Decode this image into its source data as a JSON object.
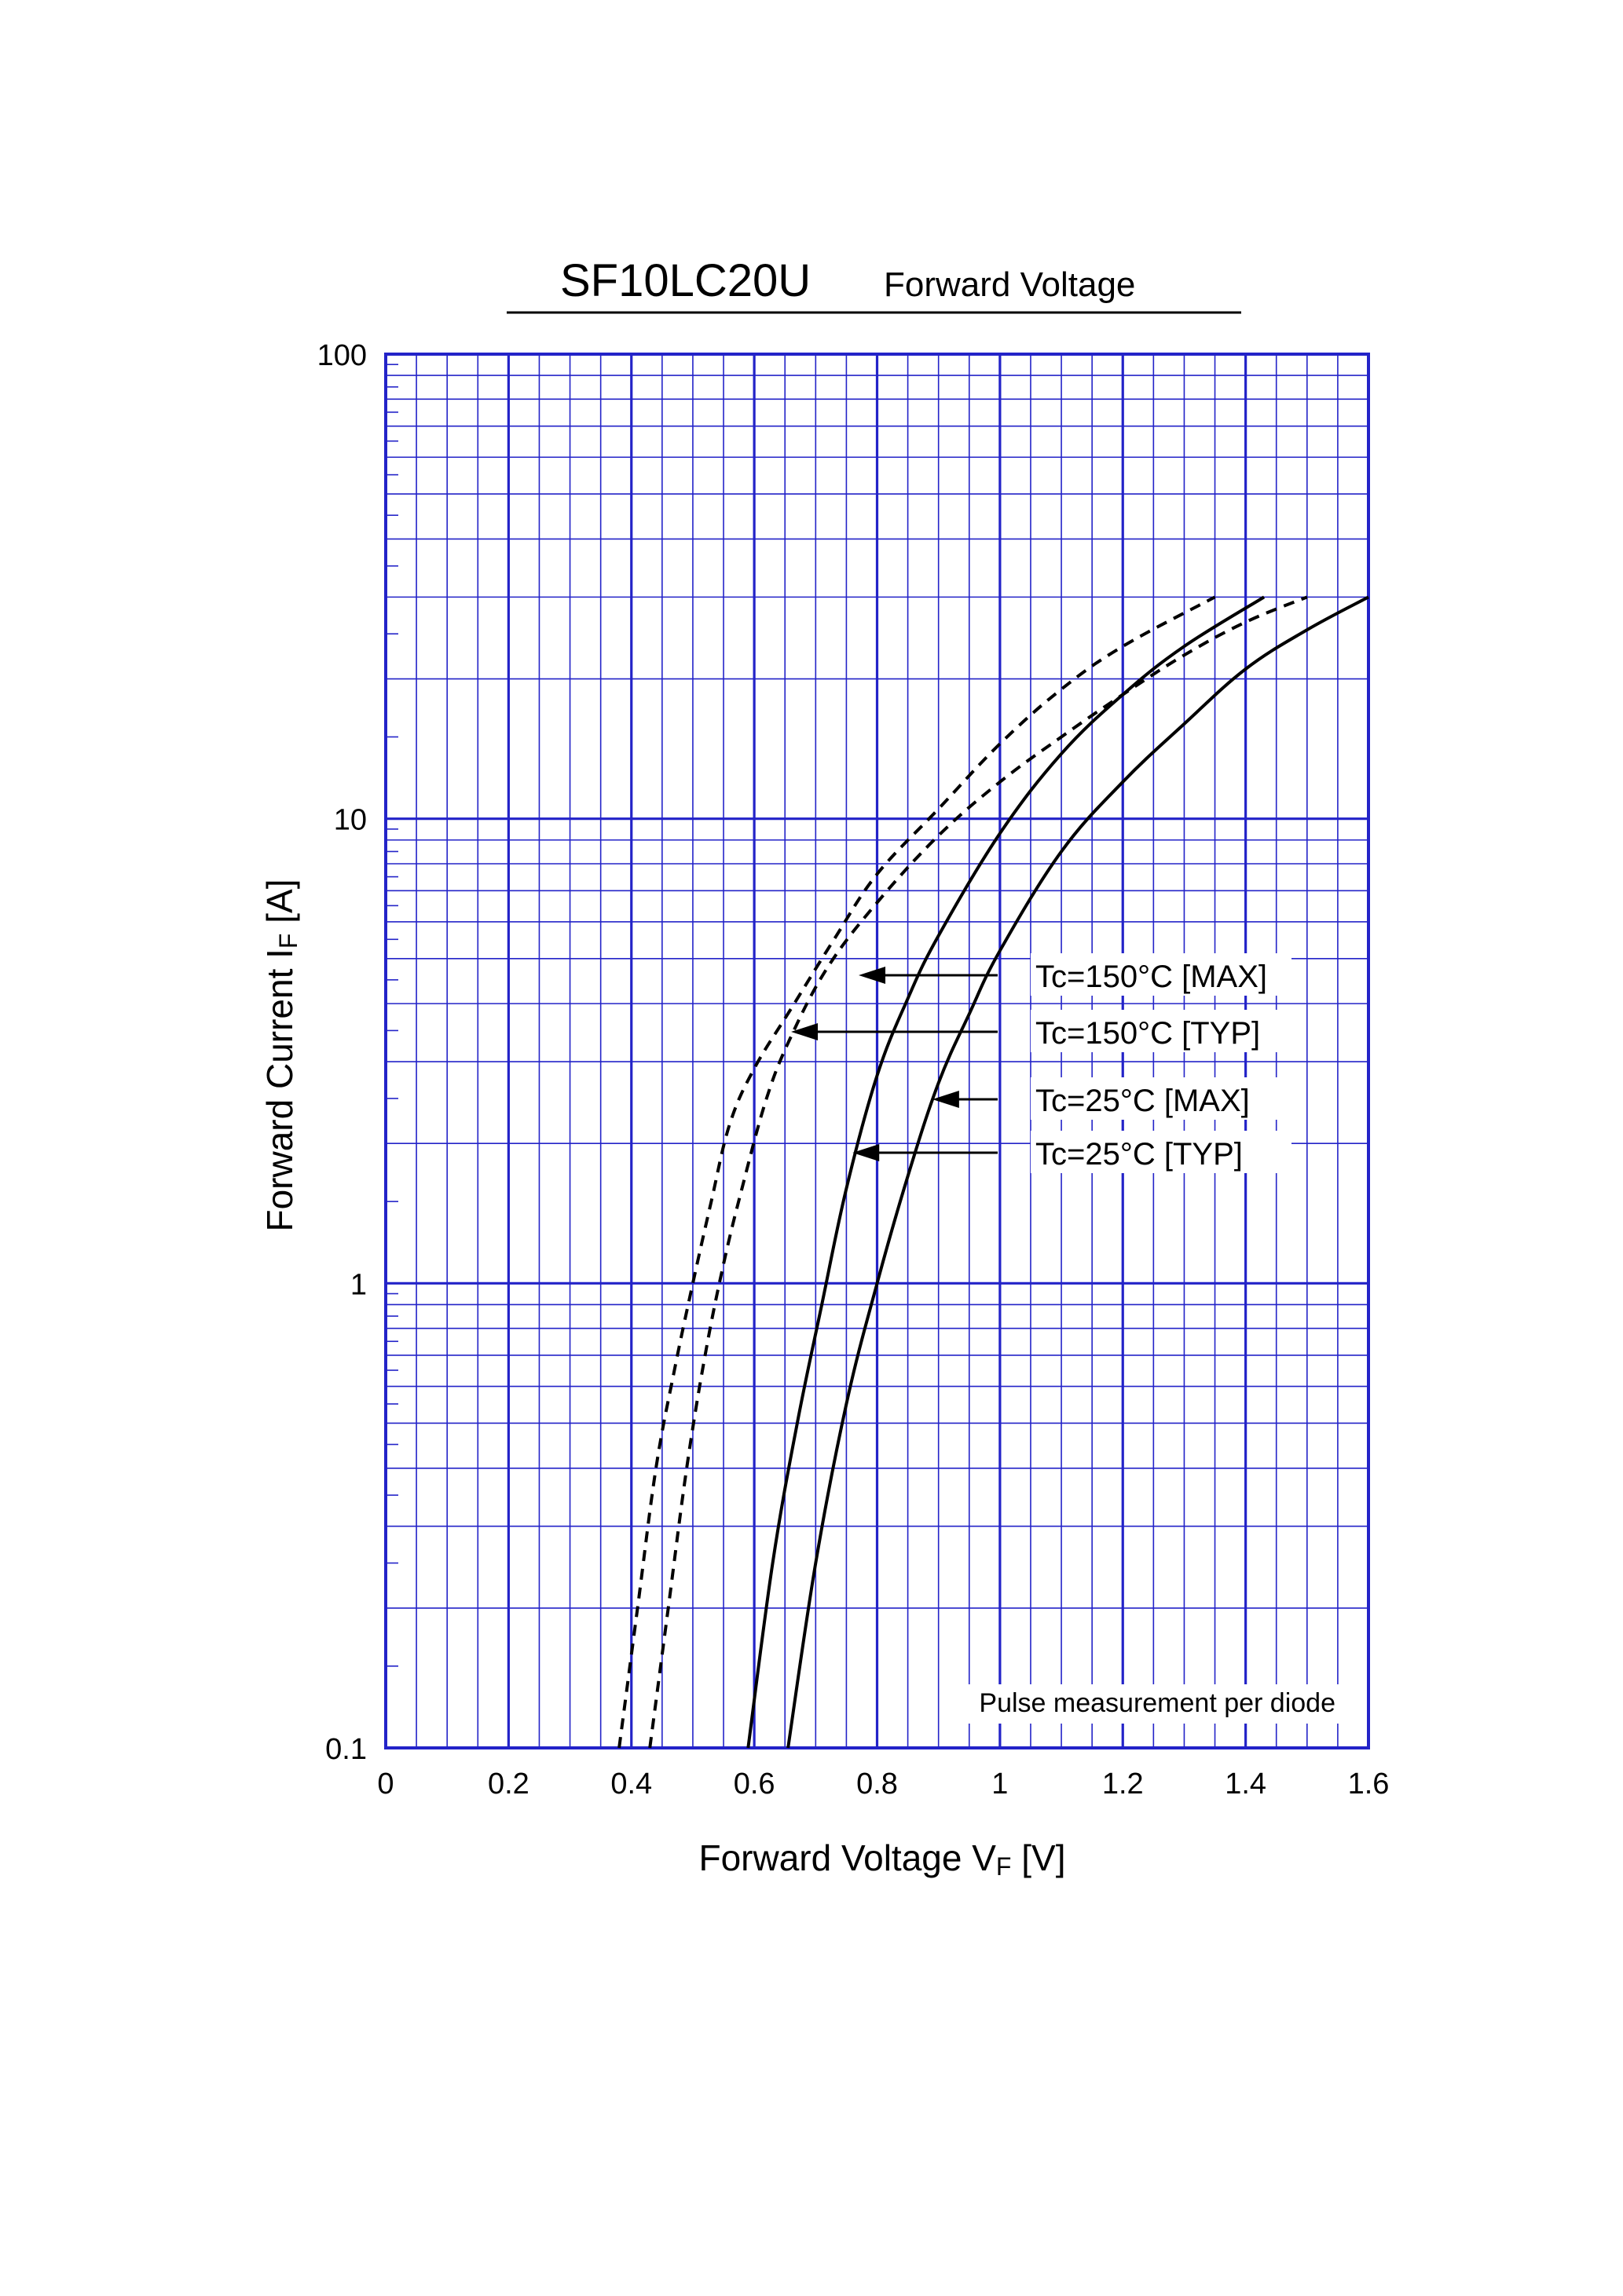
{
  "chart_data": {
    "type": "line",
    "title": "SF10LC20U",
    "subtitle": "Forward Voltage",
    "xlabel": {
      "main": "Forward Voltage  V",
      "sub": "F",
      "unit": "  [V]"
    },
    "ylabel": {
      "main": "Forward Current  I",
      "sub": "F",
      "unit": "  [A]"
    },
    "xlim": [
      0,
      1.6
    ],
    "ylim": [
      0.1,
      100
    ],
    "yscale": "log",
    "grid": true,
    "x_ticks": [
      {
        "v": 0,
        "label": "0"
      },
      {
        "v": 0.2,
        "label": "0.2"
      },
      {
        "v": 0.4,
        "label": "0.4"
      },
      {
        "v": 0.6,
        "label": "0.6"
      },
      {
        "v": 0.8,
        "label": "0.8"
      },
      {
        "v": 1.0,
        "label": "1"
      },
      {
        "v": 1.2,
        "label": "1.2"
      },
      {
        "v": 1.4,
        "label": "1.4"
      },
      {
        "v": 1.6,
        "label": "1.6"
      }
    ],
    "y_ticks": [
      {
        "v": 0.1,
        "label": "0.1"
      },
      {
        "v": 1,
        "label": "1"
      },
      {
        "v": 10,
        "label": "10"
      },
      {
        "v": 100,
        "label": "100"
      }
    ],
    "note": "Pulse measurement per diode",
    "series": [
      {
        "name": "Tc=150°C [MAX]",
        "style": "dashed",
        "label_point": [
          0.77,
          4.4
        ],
        "points": [
          [
            0.43,
            0.1
          ],
          [
            0.46,
            0.2
          ],
          [
            0.49,
            0.4
          ],
          [
            0.52,
            0.7
          ],
          [
            0.55,
            1.1
          ],
          [
            0.58,
            1.6
          ],
          [
            0.62,
            2.5
          ],
          [
            0.66,
            3.4
          ],
          [
            0.72,
            4.8
          ],
          [
            0.8,
            6.6
          ],
          [
            0.9,
            9.2
          ],
          [
            1.0,
            12
          ],
          [
            1.1,
            15
          ],
          [
            1.2,
            18.5
          ],
          [
            1.3,
            22.5
          ],
          [
            1.4,
            26.5
          ],
          [
            1.5,
            30
          ]
        ]
      },
      {
        "name": "Tc=150°C [TYP]",
        "style": "dashed",
        "label_point": [
          0.66,
          3.35
        ],
        "points": [
          [
            0.38,
            0.1
          ],
          [
            0.41,
            0.2
          ],
          [
            0.44,
            0.4
          ],
          [
            0.47,
            0.65
          ],
          [
            0.5,
            1.0
          ],
          [
            0.53,
            1.5
          ],
          [
            0.56,
            2.2
          ],
          [
            0.6,
            2.9
          ],
          [
            0.66,
            3.9
          ],
          [
            0.73,
            5.5
          ],
          [
            0.8,
            7.6
          ],
          [
            0.9,
            10.5
          ],
          [
            1.0,
            14.5
          ],
          [
            1.1,
            19
          ],
          [
            1.2,
            23.5
          ],
          [
            1.35,
            30
          ]
        ]
      },
      {
        "name": "Tc=25°C [MAX]",
        "style": "solid",
        "label_point": [
          0.89,
          2.4
        ],
        "points": [
          [
            0.655,
            0.1
          ],
          [
            0.7,
            0.25
          ],
          [
            0.75,
            0.55
          ],
          [
            0.8,
            1.0
          ],
          [
            0.85,
            1.7
          ],
          [
            0.9,
            2.7
          ],
          [
            0.95,
            3.8
          ],
          [
            1.0,
            5.2
          ],
          [
            1.1,
            8.5
          ],
          [
            1.2,
            12
          ],
          [
            1.3,
            16
          ],
          [
            1.4,
            21
          ],
          [
            1.5,
            25.5
          ],
          [
            1.6,
            30
          ]
        ]
      },
      {
        "name": "Tc=25°C [TYP]",
        "style": "solid",
        "label_point": [
          0.76,
          1.85
        ],
        "points": [
          [
            0.59,
            0.1
          ],
          [
            0.63,
            0.25
          ],
          [
            0.67,
            0.5
          ],
          [
            0.71,
            0.9
          ],
          [
            0.75,
            1.6
          ],
          [
            0.8,
            2.8
          ],
          [
            0.85,
            4.1
          ],
          [
            0.9,
            5.6
          ],
          [
            1.0,
            9.3
          ],
          [
            1.1,
            13.8
          ],
          [
            1.2,
            18.5
          ],
          [
            1.3,
            23.5
          ],
          [
            1.43,
            30
          ]
        ]
      }
    ]
  }
}
